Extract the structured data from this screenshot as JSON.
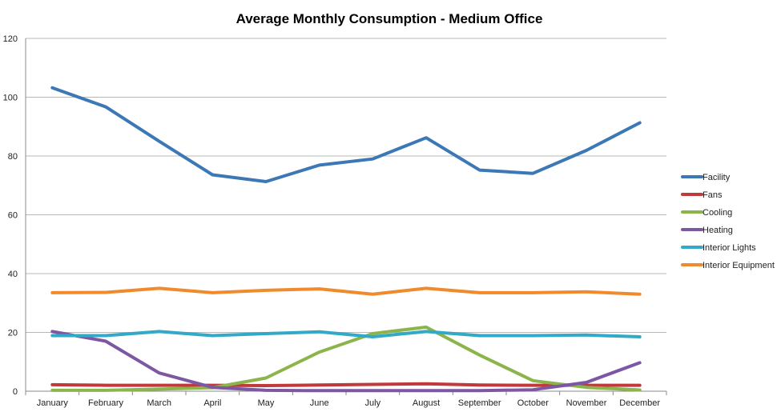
{
  "chart_data": {
    "type": "line",
    "title": "Average Monthly Consumption - Medium Office",
    "xlabel": "",
    "ylabel": "",
    "ylim": [
      0,
      120
    ],
    "yticks": [
      0,
      20,
      40,
      60,
      80,
      100,
      120
    ],
    "grid": "horizontal",
    "legend_position": "right",
    "categories": [
      "January",
      "February",
      "March",
      "April",
      "May",
      "June",
      "July",
      "August",
      "September",
      "October",
      "November",
      "December"
    ],
    "series": [
      {
        "name": "Facility",
        "color": "#3c78b5",
        "values": [
          103.2,
          96.7,
          85.0,
          73.6,
          71.3,
          76.9,
          79.0,
          86.2,
          75.2,
          74.1,
          81.9,
          91.3
        ]
      },
      {
        "name": "Fans",
        "color": "#c0393b",
        "values": [
          2.2,
          2.0,
          2.0,
          2.0,
          1.9,
          2.1,
          2.3,
          2.5,
          2.1,
          2.0,
          2.0,
          2.0
        ]
      },
      {
        "name": "Cooling",
        "color": "#8bb54a",
        "values": [
          0.3,
          0.3,
          0.7,
          1.2,
          4.5,
          13.3,
          19.6,
          21.8,
          12.3,
          3.6,
          1.3,
          0.4
        ]
      },
      {
        "name": "Heating",
        "color": "#7d57a3",
        "values": [
          20.3,
          17.0,
          6.2,
          1.3,
          0.3,
          0.2,
          0.2,
          0.2,
          0.2,
          0.5,
          3.0,
          9.7
        ]
      },
      {
        "name": "Interior Lights",
        "color": "#33a9c8",
        "values": [
          18.9,
          18.9,
          20.3,
          18.9,
          19.6,
          20.2,
          18.5,
          20.3,
          18.9,
          18.9,
          19.1,
          18.5
        ]
      },
      {
        "name": "Interior Equipment",
        "color": "#ef8b2c",
        "values": [
          33.5,
          33.6,
          35.0,
          33.5,
          34.3,
          34.8,
          33.0,
          35.0,
          33.5,
          33.5,
          33.8,
          33.0
        ]
      }
    ]
  }
}
